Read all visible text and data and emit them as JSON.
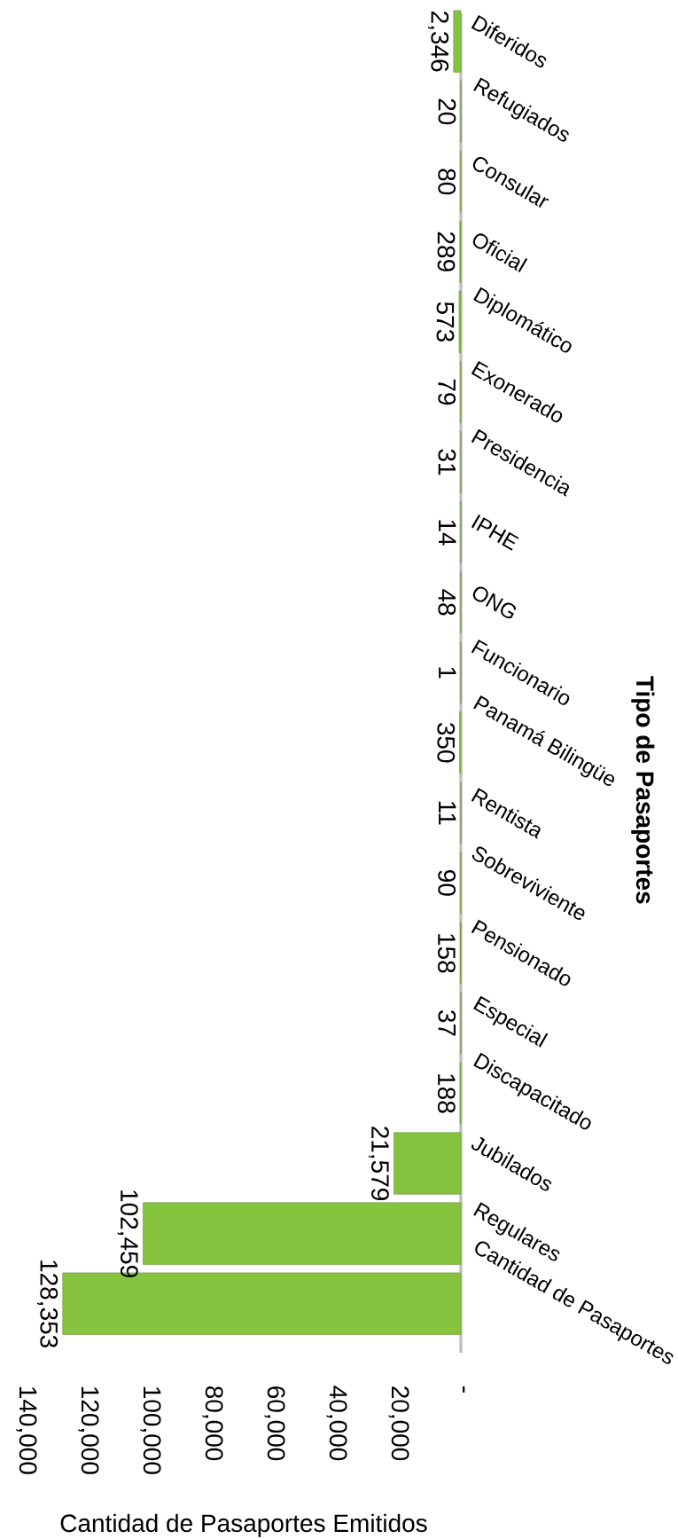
{
  "chart_data": {
    "type": "bar",
    "orientation": "horizontal",
    "xlabel": "Cantidad de Pasaportes Emitidos",
    "ylabel": "Tipo de Pasaportes",
    "categories": [
      "Diferidos",
      "Refugiados",
      "Consular",
      "Oficial",
      "Diplomático",
      "Exonerado",
      "Presidencia",
      "IPHE",
      "ONG",
      "Funcionario",
      "Panamá Bilingüe",
      "Rentista",
      "Sobreviviente",
      "Pensionado",
      "Especial",
      "Discapacitado",
      "Jubilados",
      "Regulares",
      "Cantidad de Pasaportes"
    ],
    "values": [
      2346,
      20,
      80,
      289,
      573,
      79,
      31,
      14,
      48,
      1,
      350,
      11,
      90,
      158,
      37,
      188,
      21579,
      102459,
      128353
    ],
    "value_labels": [
      "2,346",
      "20",
      "80",
      "289",
      "573",
      "79",
      "31",
      "14",
      "48",
      "1",
      "350",
      "11",
      "90",
      "158",
      "37",
      "188",
      "21,579",
      "102,459",
      "128,353"
    ],
    "color": "#86c440",
    "xlim": [
      140000,
      0
    ],
    "xticks": [
      {
        "value": 0,
        "label": "-"
      },
      {
        "value": 20000,
        "label": "20,000"
      },
      {
        "value": 40000,
        "label": "40,000"
      },
      {
        "value": 60000,
        "label": "60,000"
      },
      {
        "value": 80000,
        "label": "80,000"
      },
      {
        "value": 100000,
        "label": "100,000"
      },
      {
        "value": 120000,
        "label": "120,000"
      },
      {
        "value": 140000,
        "label": "140,000"
      }
    ]
  }
}
